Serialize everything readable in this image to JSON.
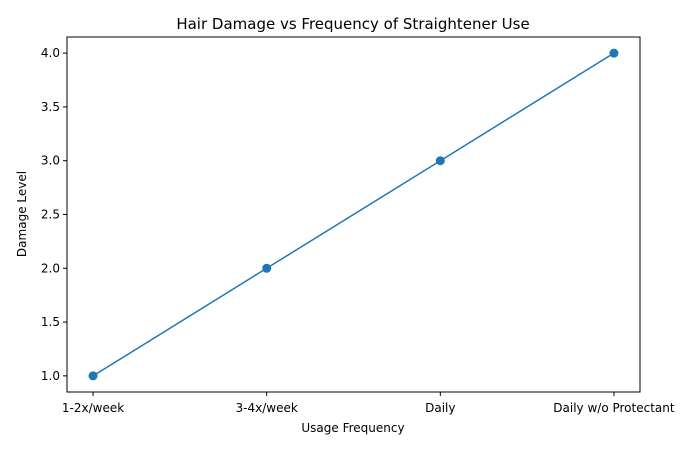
{
  "chart_data": {
    "type": "line",
    "title": "Hair Damage vs Frequency of Straightener Use",
    "xlabel": "Usage Frequency",
    "ylabel": "Damage Level",
    "categories": [
      "1-2x/week",
      "3-4x/week",
      "Daily",
      "Daily w/o Protectant"
    ],
    "series": [
      {
        "values": [
          1,
          2,
          3,
          4
        ],
        "color": "#1f77b4",
        "marker": "circle"
      }
    ],
    "ylim": [
      0.85,
      4.15
    ],
    "yticks": [
      "1.0",
      "1.5",
      "2.0",
      "2.5",
      "3.0",
      "3.5",
      "4.0"
    ],
    "grid": false
  }
}
